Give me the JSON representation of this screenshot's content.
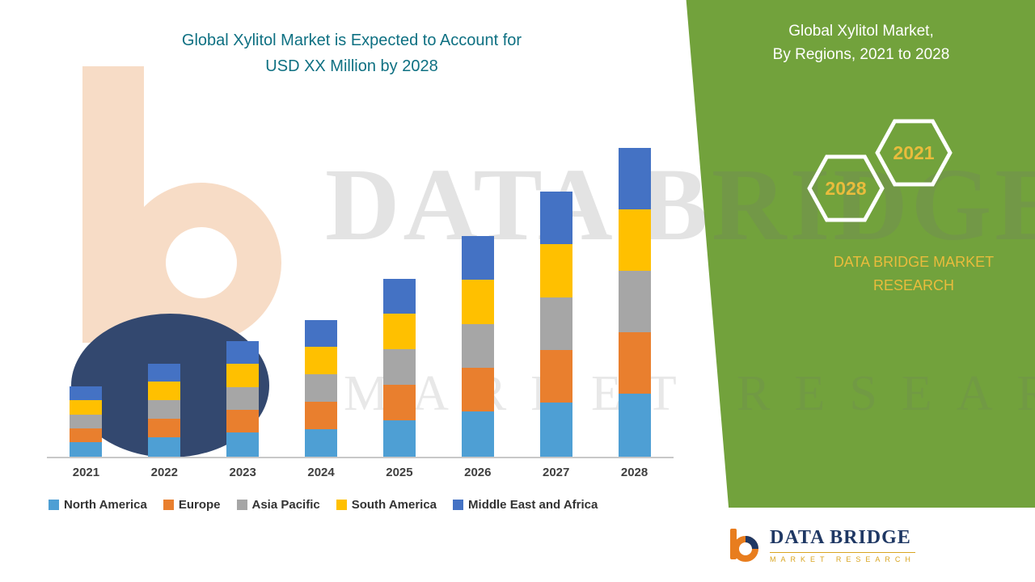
{
  "chart": {
    "title_line1": "Global Xylitol Market is Expected to Account for",
    "title_line2": "USD XX Million by 2028",
    "title_color": "#0E7082"
  },
  "chart_data": {
    "type": "bar",
    "stacked": true,
    "title": "Global Xylitol Market is Expected to Account for USD XX Million by 2028",
    "xlabel": "",
    "ylabel": "",
    "value_axis_visible": false,
    "legend_position": "bottom",
    "ylim": [
      0,
      400
    ],
    "note": "Actual USD values undisclosed (shown as XX); series values are relative units estimated from bar heights",
    "categories": [
      "2021",
      "2022",
      "2023",
      "2024",
      "2025",
      "2026",
      "2027",
      "2028"
    ],
    "series": [
      {
        "name": "North America",
        "color": "#4E9FD4",
        "values": [
          18,
          24,
          30,
          34,
          45,
          56,
          67,
          78
        ]
      },
      {
        "name": "Europe",
        "color": "#E97F2E",
        "values": [
          17,
          23,
          28,
          34,
          44,
          54,
          65,
          76
        ]
      },
      {
        "name": "Asia Pacific",
        "color": "#A6A6A6",
        "values": [
          17,
          23,
          28,
          34,
          44,
          54,
          65,
          76
        ]
      },
      {
        "name": "South America",
        "color": "#FFC000",
        "values": [
          18,
          23,
          29,
          34,
          44,
          55,
          66,
          76
        ]
      },
      {
        "name": "Middle East and Africa",
        "color": "#4472C4",
        "values": [
          17,
          22,
          28,
          33,
          43,
          54,
          65,
          76
        ]
      }
    ]
  },
  "sidebar": {
    "green": "#72A23C",
    "accent_yellow": "#E9BC3C",
    "title_line1": "Global Xylitol Market,",
    "title_line2": "By Regions, 2021 to 2028",
    "hexagons": [
      {
        "label": "2028"
      },
      {
        "label": "2021"
      }
    ],
    "brand_line1": "DATA BRIDGE MARKET",
    "brand_line2": "RESEARCH"
  },
  "watermark": {
    "line1": "DATA BRIDGE",
    "line2": "MARKET RESEARCH"
  },
  "logo": {
    "name": "DATA BRIDGE",
    "sub": "MARKET RESEARCH",
    "navy": "#1F3864",
    "orange": "#E87D1E"
  }
}
